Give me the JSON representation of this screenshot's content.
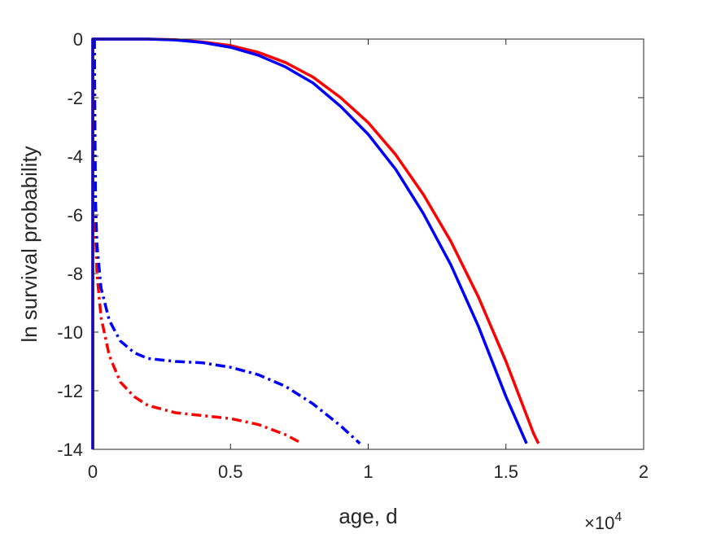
{
  "chart_data": {
    "type": "line",
    "xlabel": "age, d",
    "ylabel": "ln survival probability",
    "x_exponent_label": "×10",
    "x_exponent_power": "4",
    "xlim": [
      0,
      20000
    ],
    "ylim": [
      -14,
      0
    ],
    "x_ticks": [
      0,
      5000,
      10000,
      15000,
      20000
    ],
    "x_tick_labels": [
      "0",
      "0.5",
      "1",
      "1.5",
      "2"
    ],
    "y_ticks": [
      0,
      -2,
      -4,
      -6,
      -8,
      -10,
      -12,
      -14
    ],
    "y_tick_labels": [
      "0",
      "-2",
      "-4",
      "-6",
      "-8",
      "-10",
      "-12",
      "-14"
    ],
    "grid": false,
    "series": [
      {
        "color": "#ff0000",
        "style": "solid",
        "points": [
          [
            0,
            -14
          ],
          [
            0,
            0
          ],
          [
            1000,
            0
          ],
          [
            2000,
            0
          ],
          [
            3000,
            -0.02
          ],
          [
            4000,
            -0.1
          ],
          [
            5000,
            -0.22
          ],
          [
            6000,
            -0.45
          ],
          [
            7000,
            -0.8
          ],
          [
            8000,
            -1.3
          ],
          [
            9000,
            -2.0
          ],
          [
            10000,
            -2.85
          ],
          [
            11000,
            -3.95
          ],
          [
            12000,
            -5.3
          ],
          [
            13000,
            -6.9
          ],
          [
            14000,
            -8.8
          ],
          [
            15000,
            -11.0
          ],
          [
            16000,
            -13.45
          ],
          [
            16180,
            -13.8
          ]
        ]
      },
      {
        "color": "#0000ff",
        "style": "solid",
        "points": [
          [
            0,
            -14
          ],
          [
            0,
            0
          ],
          [
            1000,
            0
          ],
          [
            2000,
            0
          ],
          [
            3000,
            -0.03
          ],
          [
            4000,
            -0.12
          ],
          [
            5000,
            -0.28
          ],
          [
            6000,
            -0.55
          ],
          [
            7000,
            -0.95
          ],
          [
            8000,
            -1.5
          ],
          [
            9000,
            -2.3
          ],
          [
            10000,
            -3.25
          ],
          [
            11000,
            -4.45
          ],
          [
            12000,
            -5.95
          ],
          [
            13000,
            -7.7
          ],
          [
            14000,
            -9.8
          ],
          [
            15000,
            -12.2
          ],
          [
            15750,
            -13.8
          ]
        ]
      },
      {
        "color": "#ff0000",
        "style": "dashdot",
        "points": [
          [
            60,
            0
          ],
          [
            80,
            -4
          ],
          [
            100,
            -6.5
          ],
          [
            150,
            -8
          ],
          [
            300,
            -9.5
          ],
          [
            600,
            -10.8
          ],
          [
            1000,
            -11.7
          ],
          [
            1500,
            -12.2
          ],
          [
            2000,
            -12.5
          ],
          [
            3000,
            -12.75
          ],
          [
            4000,
            -12.85
          ],
          [
            5000,
            -12.95
          ],
          [
            6000,
            -13.15
          ],
          [
            7000,
            -13.5
          ],
          [
            7600,
            -13.8
          ]
        ]
      },
      {
        "color": "#0000ff",
        "style": "dashdot",
        "points": [
          [
            60,
            0
          ],
          [
            80,
            -3
          ],
          [
            100,
            -5.5
          ],
          [
            150,
            -7
          ],
          [
            300,
            -8.5
          ],
          [
            600,
            -9.6
          ],
          [
            1000,
            -10.3
          ],
          [
            1500,
            -10.7
          ],
          [
            2000,
            -10.9
          ],
          [
            3000,
            -11.0
          ],
          [
            4000,
            -11.05
          ],
          [
            5000,
            -11.2
          ],
          [
            6000,
            -11.45
          ],
          [
            7000,
            -11.85
          ],
          [
            8000,
            -12.45
          ],
          [
            9000,
            -13.2
          ],
          [
            9700,
            -13.8
          ]
        ]
      }
    ]
  }
}
